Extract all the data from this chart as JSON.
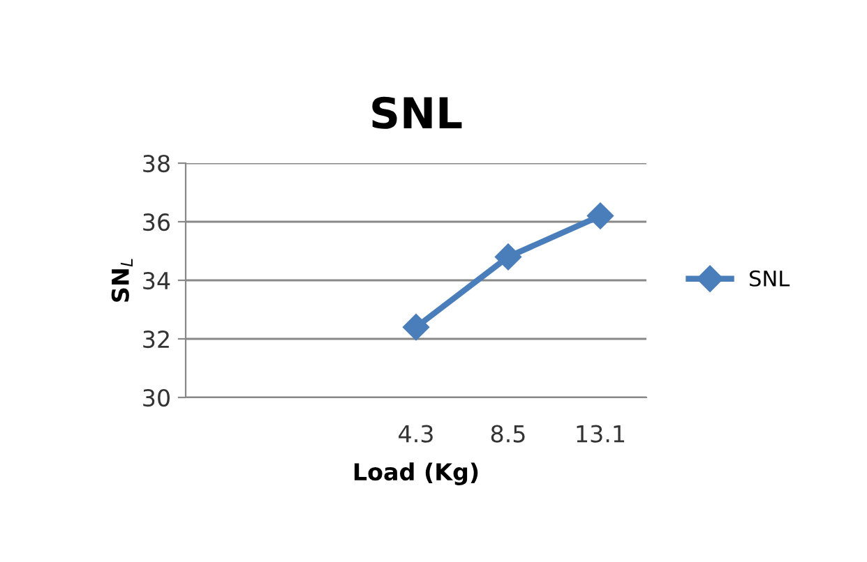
{
  "chart_data": {
    "type": "line",
    "title": "SNL",
    "xlabel": "Load (Kg)",
    "ylabel": "SN$_{L}$",
    "categories": [
      null,
      null,
      "4.3",
      "8.5",
      "13.1"
    ],
    "series": [
      {
        "name": "SNL",
        "color": "#4a7ebb",
        "values": [
          null,
          null,
          32.4,
          34.8,
          36.2
        ]
      }
    ],
    "ylim": [
      30,
      38
    ],
    "yticks": [
      30,
      32,
      34,
      36,
      38
    ],
    "grid": "y",
    "legend": "right",
    "marker": "diamond",
    "line_style": "solid"
  }
}
